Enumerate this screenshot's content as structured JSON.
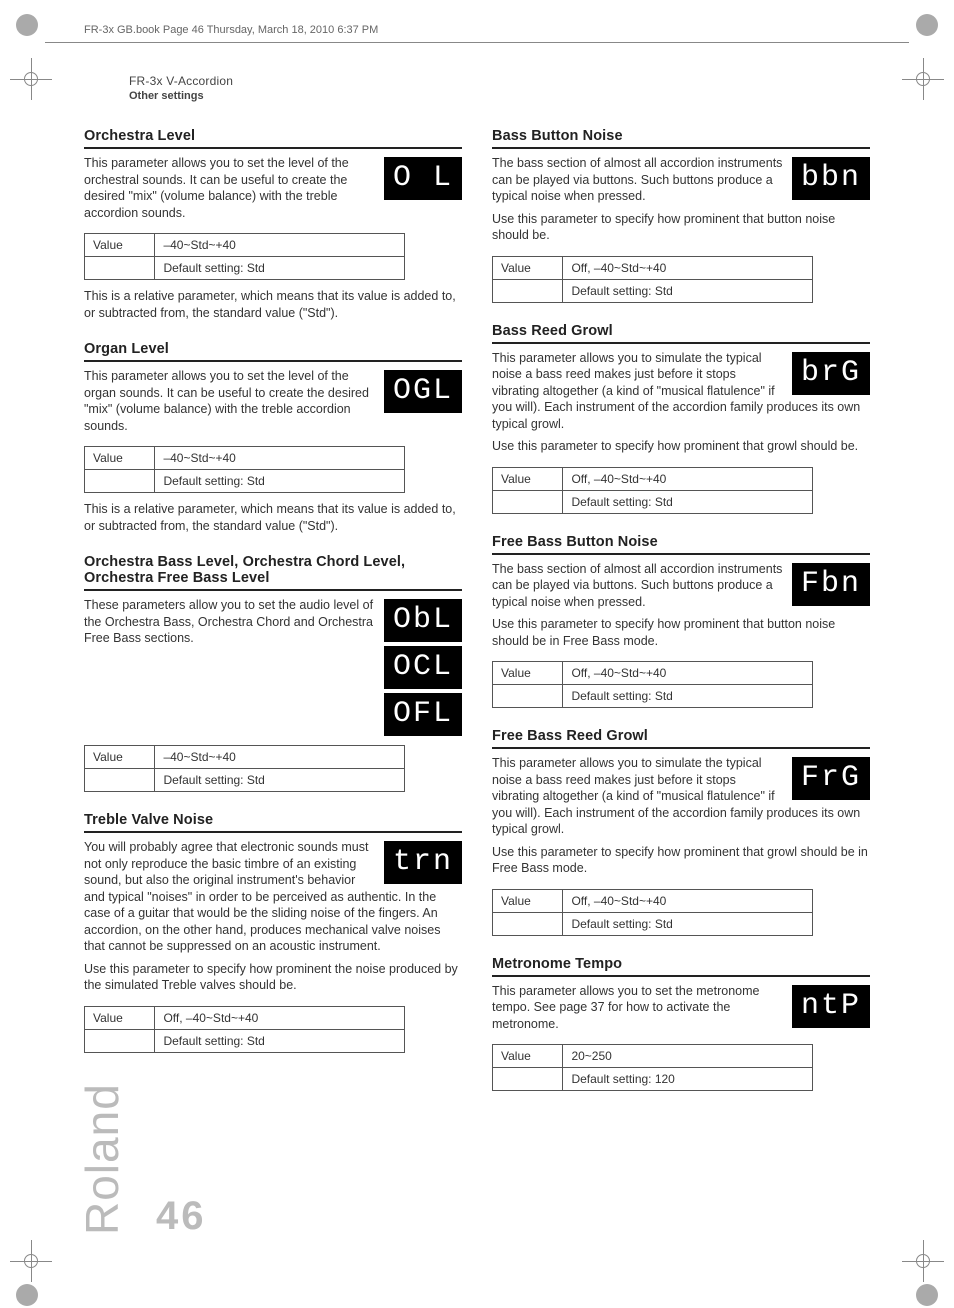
{
  "meta": {
    "print_line": "FR-3x GB.book  Page 46  Thursday, March 18, 2010  6:37 PM",
    "running_head": "FR-3x V-Accordion",
    "running_sub": "Other settings",
    "brand": "Roland",
    "page_number": "46"
  },
  "value_label": "Value",
  "left": [
    {
      "title": "Orchestra Level",
      "lcd": [
        "O L"
      ],
      "body1": "This parameter allows you to set the level of the orchestral sounds. It can be useful to create the desired \"mix\" (volume balance) with the treble accordion sounds.",
      "value": "–40~Std~+40",
      "default": "Default setting: Std",
      "body2": "This is a relative parameter, which means that its value is added to, or subtracted from, the standard value (\"Std\")."
    },
    {
      "title": "Organ Level",
      "lcd": [
        "OGL"
      ],
      "body1": "This parameter allows you to set the level of the organ sounds. It can be useful to create the desired \"mix\" (volume balance) with the treble accordion sounds.",
      "value": "–40~Std~+40",
      "default": "Default setting: Std",
      "body2": "This is a relative parameter, which means that its value is added to, or subtracted from, the standard value (\"Std\")."
    },
    {
      "title": "Orchestra Bass Level, Orchestra Chord Level, Orchestra Free Bass Level",
      "lcd": [
        "ObL",
        "OCL",
        "OFL"
      ],
      "body1": "These parameters allow you to set the audio level of the Orchestra Bass, Orchestra Chord and Orchestra Free Bass sections.",
      "value": "–40~Std~+40",
      "default": "Default setting: Std",
      "body2": ""
    },
    {
      "title": "Treble Valve Noise",
      "lcd": [
        "trn"
      ],
      "body1": "You will probably agree that electronic sounds must not only reproduce the basic timbre of an existing sound, but also the original instrument's behavior and typical \"noises\" in order to be perceived as authentic. In the case of a guitar that would be the sliding noise of the fingers. An accordion, on the other hand, produces mechanical valve noises that cannot be suppressed on an acoustic instrument.",
      "body_extra": "Use this parameter to specify how prominent the noise produced by the simulated Treble valves should be.",
      "value": "Off, –40~Std~+40",
      "default": "Default setting: Std",
      "body2": ""
    }
  ],
  "right": [
    {
      "title": "Bass Button Noise",
      "lcd": [
        "bbn"
      ],
      "body1": "The bass section of almost all accordion instruments can be played via buttons. Such buttons produce a typical noise when pressed.",
      "body_extra": "Use this parameter to specify how prominent that button noise should be.",
      "value": "Off, –40~Std~+40",
      "default": "Default setting: Std"
    },
    {
      "title": "Bass Reed Growl",
      "lcd": [
        "brG"
      ],
      "body1": "This parameter allows you to simulate the typical noise a bass reed makes just before it stops vibrating altogether (a kind of \"musical flatulence\" if you will). Each instrument of the accordion family produces its own typical growl.",
      "body_extra": "Use this parameter to specify how prominent that growl should be.",
      "value": "Off, –40~Std~+40",
      "default": "Default setting: Std"
    },
    {
      "title": "Free Bass Button Noise",
      "lcd": [
        "Fbn"
      ],
      "body1": "The bass section of almost all accordion instruments can be played via buttons. Such buttons produce a typical noise when pressed.",
      "body_extra": "Use this parameter to specify how prominent that button noise should be in Free Bass mode.",
      "value": "Off, –40~Std~+40",
      "default": "Default setting: Std"
    },
    {
      "title": "Free Bass Reed Growl",
      "lcd": [
        "FrG"
      ],
      "body1": "This parameter allows you to simulate the typical noise a bass reed makes just before it stops vibrating altogether (a kind of \"musical flatulence\" if you will). Each instrument of the accordion family produces its own typical growl.",
      "body_extra": "Use this parameter to specify how prominent that growl should be in Free Bass mode.",
      "value": "Off, –40~Std~+40",
      "default": "Default setting: Std"
    },
    {
      "title": "Metronome Tempo",
      "lcd": [
        "ntP"
      ],
      "body1": "This parameter allows you to set the metronome tempo. See page 37 for how to activate the metronome.",
      "value": "20~250",
      "default": "Default setting: 120"
    }
  ]
}
